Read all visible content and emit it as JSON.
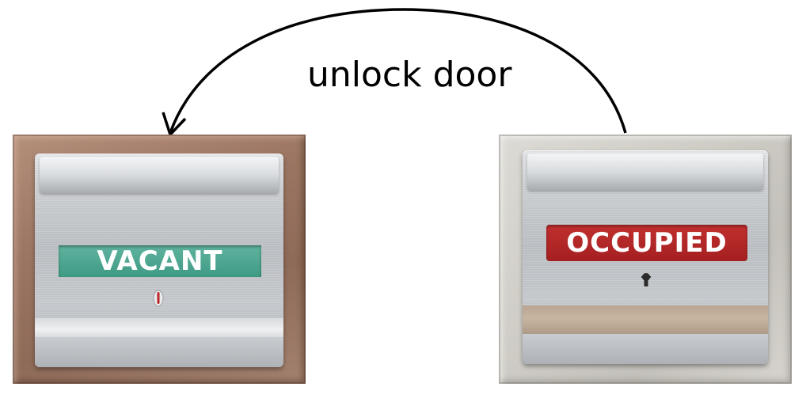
{
  "caption": "unlock door",
  "states": {
    "from": {
      "label": "OCCUPIED",
      "color": "#b0262a"
    },
    "to": {
      "label": "VACANT",
      "color": "#4aa58f"
    }
  },
  "arrow": {
    "direction": "from OCCUPIED to VACANT",
    "color": "#000000"
  }
}
